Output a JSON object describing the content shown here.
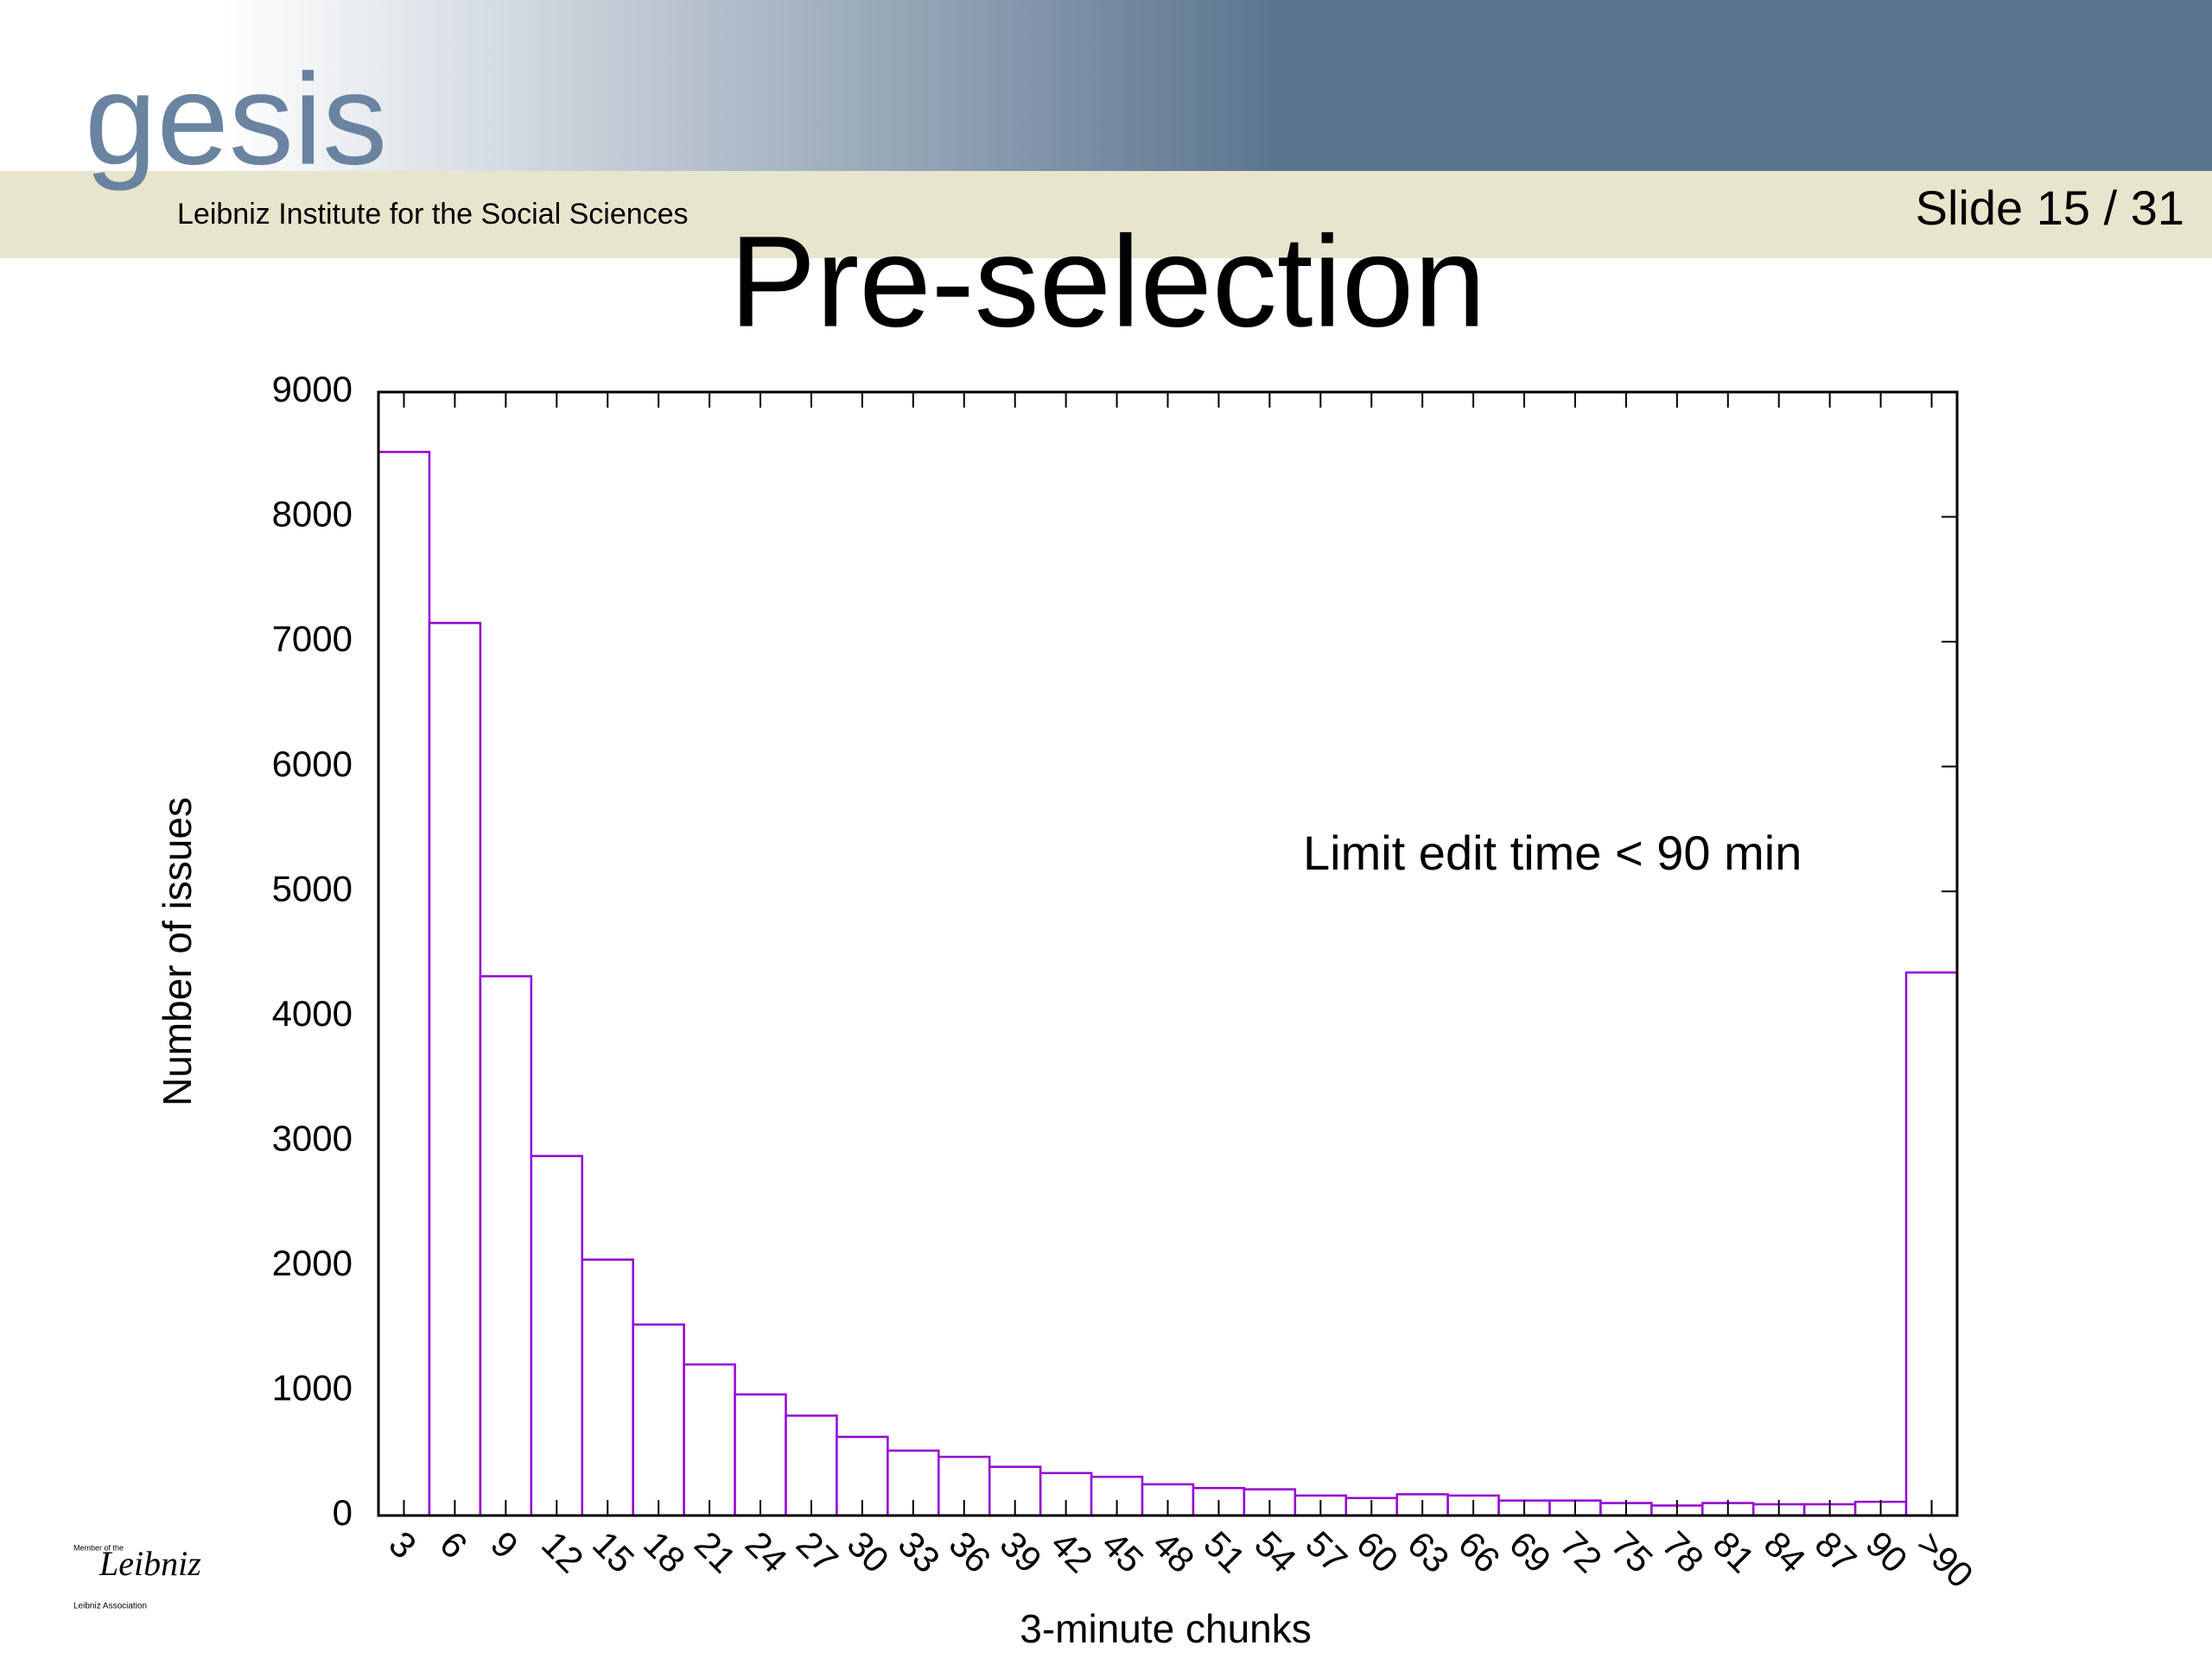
{
  "header": {
    "logo": "gesis",
    "institute": "Leibniz Institute for the Social Sciences",
    "slide": "Slide 15 /  31",
    "member_of": "Member of the",
    "leibniz": "Leibniz",
    "association": "Leibniz Association"
  },
  "chart_data": {
    "type": "bar",
    "title": "Pre-selection",
    "x_label": "3-minute chunks",
    "y_label": "Number of issues",
    "annotation": "Limit edit time < 90 min",
    "categories": [
      "3",
      "6",
      "9",
      "12",
      "15",
      "18",
      "21",
      "24",
      "27",
      "30",
      "33",
      "36",
      "39",
      "42",
      "45",
      "48",
      "51",
      "54",
      "57",
      "60",
      "63",
      "66",
      "69",
      "72",
      "75",
      "78",
      "81",
      "84",
      "87",
      "90",
      ">90"
    ],
    "values": [
      8520,
      7150,
      4320,
      2880,
      2050,
      1530,
      1210,
      970,
      800,
      630,
      520,
      470,
      390,
      340,
      310,
      250,
      220,
      210,
      160,
      140,
      170,
      160,
      120,
      120,
      100,
      80,
      100,
      90,
      90,
      110,
      4350
    ],
    "color": "#9400d3",
    "ylim": [
      0,
      9000
    ],
    "yticks": [
      0,
      1000,
      2000,
      3000,
      4000,
      5000,
      6000,
      7000,
      8000,
      9000
    ]
  }
}
